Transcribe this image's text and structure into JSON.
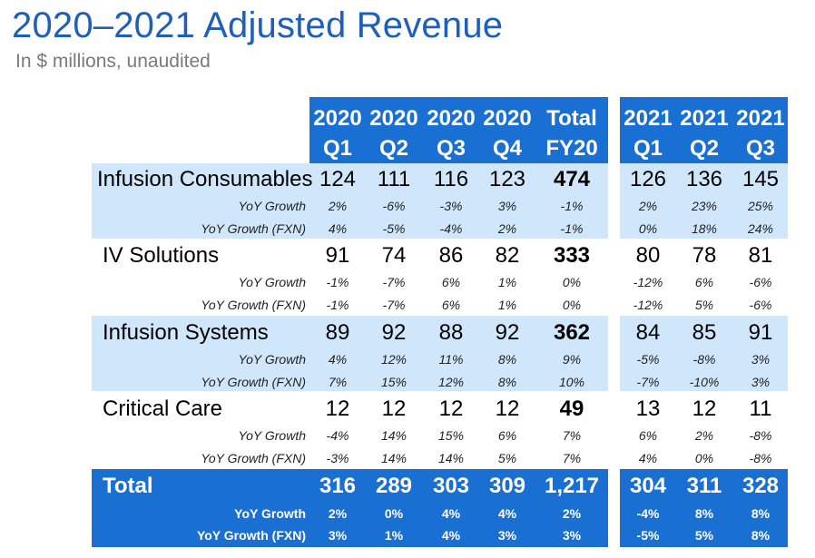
{
  "title": "2020–2021 Adjusted Revenue",
  "subtitle": "In $ millions, unaudited",
  "columns": [
    {
      "year": "2020",
      "period": "Q1"
    },
    {
      "year": "2020",
      "period": "Q2"
    },
    {
      "year": "2020",
      "period": "Q3"
    },
    {
      "year": "2020",
      "period": "Q4"
    },
    {
      "year": "Total",
      "period": "FY20"
    },
    {
      "year": "2021",
      "period": "Q1"
    },
    {
      "year": "2021",
      "period": "Q2"
    },
    {
      "year": "2021",
      "period": "Q3"
    }
  ],
  "segments": [
    {
      "name": "Infusion Consumables",
      "values": [
        "124",
        "111",
        "116",
        "123",
        "474",
        "126",
        "136",
        "145"
      ],
      "yoy_label": "YoY Growth",
      "yoy": [
        "2%",
        "-6%",
        "-3%",
        "3%",
        "-1%",
        "2%",
        "23%",
        "25%"
      ],
      "fxn_label": "YoY Growth (FXN)",
      "fxn": [
        "4%",
        "-5%",
        "-4%",
        "2%",
        "-1%",
        "0%",
        "18%",
        "24%"
      ]
    },
    {
      "name": "IV Solutions",
      "values": [
        "91",
        "74",
        "86",
        "82",
        "333",
        "80",
        "78",
        "81"
      ],
      "yoy_label": "YoY Growth",
      "yoy": [
        "-1%",
        "-7%",
        "6%",
        "1%",
        "0%",
        "-12%",
        "6%",
        "-6%"
      ],
      "fxn_label": "YoY Growth (FXN)",
      "fxn": [
        "-1%",
        "-7%",
        "6%",
        "1%",
        "0%",
        "-12%",
        "5%",
        "-6%"
      ]
    },
    {
      "name": "Infusion Systems",
      "values": [
        "89",
        "92",
        "88",
        "92",
        "362",
        "84",
        "85",
        "91"
      ],
      "yoy_label": "YoY Growth",
      "yoy": [
        "4%",
        "12%",
        "11%",
        "8%",
        "9%",
        "-5%",
        "-8%",
        "3%"
      ],
      "fxn_label": "YoY Growth (FXN)",
      "fxn": [
        "7%",
        "15%",
        "12%",
        "8%",
        "10%",
        "-7%",
        "-10%",
        "3%"
      ]
    },
    {
      "name": "Critical Care",
      "values": [
        "12",
        "12",
        "12",
        "12",
        "49",
        "13",
        "12",
        "11"
      ],
      "yoy_label": "YoY Growth",
      "yoy": [
        "-4%",
        "14%",
        "15%",
        "6%",
        "7%",
        "6%",
        "2%",
        "-8%"
      ],
      "fxn_label": "YoY Growth (FXN)",
      "fxn": [
        "-3%",
        "14%",
        "14%",
        "5%",
        "7%",
        "4%",
        "0%",
        "-8%"
      ]
    }
  ],
  "total": {
    "name": "Total",
    "values": [
      "316",
      "289",
      "303",
      "309",
      "1,217",
      "304",
      "311",
      "328"
    ],
    "yoy_label": "YoY Growth",
    "yoy": [
      "2%",
      "0%",
      "4%",
      "4%",
      "2%",
      "-4%",
      "8%",
      "8%"
    ],
    "fxn_label": "YoY Growth (FXN)",
    "fxn": [
      "3%",
      "1%",
      "4%",
      "3%",
      "3%",
      "-5%",
      "5%",
      "8%"
    ]
  }
}
